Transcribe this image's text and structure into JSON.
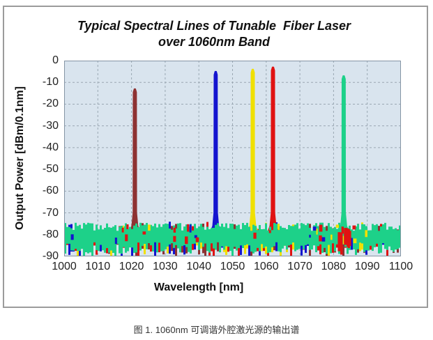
{
  "figure": {
    "title_line1": "Typical Spectral Lines of Tunable  Fiber Laser",
    "title_line2": "over 1060nm Band",
    "caption": "图 1. 1060nm 可调谐外腔激光源的输出谱"
  },
  "chart_data": {
    "type": "line",
    "title": "Typical Spectral Lines of Tunable Fiber Laser over 1060nm Band",
    "xlabel": "Wavelength [nm]",
    "ylabel": "Output Power [dBm/0.1nm]",
    "xlim": [
      1000,
      1100
    ],
    "ylim": [
      -90,
      0
    ],
    "x_ticks": [
      1000,
      1010,
      1020,
      1030,
      1040,
      1050,
      1060,
      1070,
      1080,
      1090,
      1100
    ],
    "y_ticks": [
      0,
      -10,
      -20,
      -30,
      -40,
      -50,
      -60,
      -70,
      -80,
      -90
    ],
    "grid": "dashed",
    "legend": "none",
    "plot_bg_color": "#d9e4ee",
    "grid_color": "#9aa7b2",
    "plot_border_color": "#8494a4",
    "series": [
      {
        "name": "laser-line-1021nm",
        "color": "#8e3232",
        "peak_nm": 1021,
        "peak_dbm": -13
      },
      {
        "name": "laser-line-1045nm",
        "color": "#1414cf",
        "peak_nm": 1045,
        "peak_dbm": -5
      },
      {
        "name": "laser-line-1056nm",
        "color": "#f0e000",
        "peak_nm": 1056,
        "peak_dbm": -4
      },
      {
        "name": "laser-line-1062nm",
        "color": "#e01212",
        "peak_nm": 1062,
        "peak_dbm": -3
      },
      {
        "name": "laser-line-1083nm",
        "color": "#1dd189",
        "peak_nm": 1083,
        "peak_dbm": -7
      }
    ],
    "noise_floor": {
      "mean_dbm": -80,
      "min_dbm": -90,
      "max_dbm": -74,
      "dominant_color": "#1dd189",
      "other_colors": [
        "#e01212",
        "#1414cf",
        "#f0e000",
        "#8e3232"
      ]
    }
  }
}
